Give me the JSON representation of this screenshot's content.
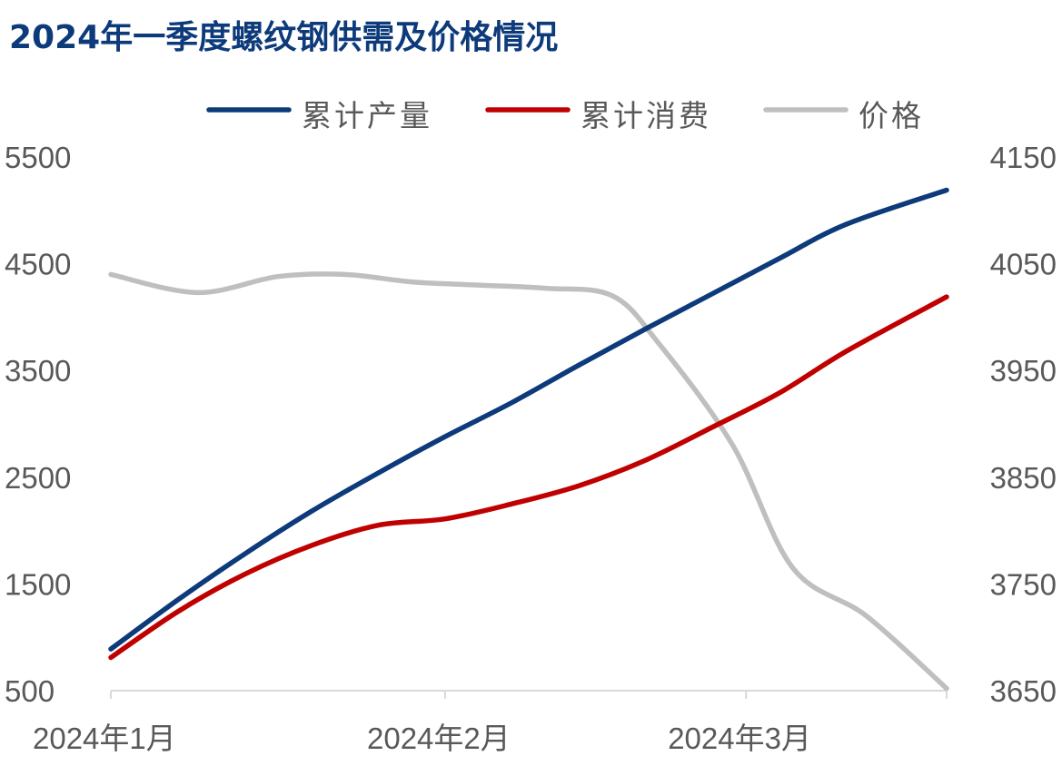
{
  "chart_data": {
    "type": "line",
    "title": "2024年一季度螺纹钢供需及价格情况",
    "categories": [
      "2024年1月",
      "2024年2月",
      "2024年3月"
    ],
    "x": [
      0,
      5,
      9.5,
      12.5
    ],
    "y_left": {
      "ticks": [
        "500",
        "1500",
        "2500",
        "3500",
        "4500",
        "5500"
      ],
      "lim": [
        500,
        5500
      ]
    },
    "y_right": {
      "ticks": [
        "3650",
        "3750",
        "3850",
        "3950",
        "4050",
        "4150"
      ],
      "lim": [
        3650,
        4150
      ]
    },
    "legend_position": "top",
    "grid": false,
    "series": [
      {
        "name": "累计产量",
        "axis": "left",
        "color": "#0d3a7a",
        "points": [
          [
            0,
            890
          ],
          [
            1,
            1350
          ],
          [
            2,
            1780
          ],
          [
            3,
            2180
          ],
          [
            4,
            2540
          ],
          [
            5,
            2880
          ],
          [
            6,
            3200
          ],
          [
            7,
            3550
          ],
          [
            8,
            3890
          ],
          [
            9,
            4220
          ],
          [
            10,
            4550
          ],
          [
            11,
            4870
          ],
          [
            12.5,
            5190
          ]
        ]
      },
      {
        "name": "累计消费",
        "axis": "left",
        "color": "#c00000",
        "points": [
          [
            0,
            810
          ],
          [
            1,
            1240
          ],
          [
            2,
            1590
          ],
          [
            3,
            1860
          ],
          [
            4,
            2050
          ],
          [
            5,
            2110
          ],
          [
            6,
            2250
          ],
          [
            7,
            2420
          ],
          [
            8,
            2660
          ],
          [
            9,
            2970
          ],
          [
            10,
            3290
          ],
          [
            11,
            3680
          ],
          [
            12.5,
            4190
          ]
        ]
      },
      {
        "name": "价格",
        "axis": "right",
        "color": "#bfbfbf",
        "points": [
          [
            0,
            4040
          ],
          [
            1.3,
            4023
          ],
          [
            2.5,
            4038
          ],
          [
            3.5,
            4040
          ],
          [
            4.5,
            4033
          ],
          [
            5.5,
            4030
          ],
          [
            6.5,
            4027
          ],
          [
            7.5,
            4020
          ],
          [
            8.2,
            3975
          ],
          [
            9.3,
            3880
          ],
          [
            10.2,
            3765
          ],
          [
            11.3,
            3720
          ],
          [
            12.5,
            3652
          ]
        ]
      }
    ]
  }
}
